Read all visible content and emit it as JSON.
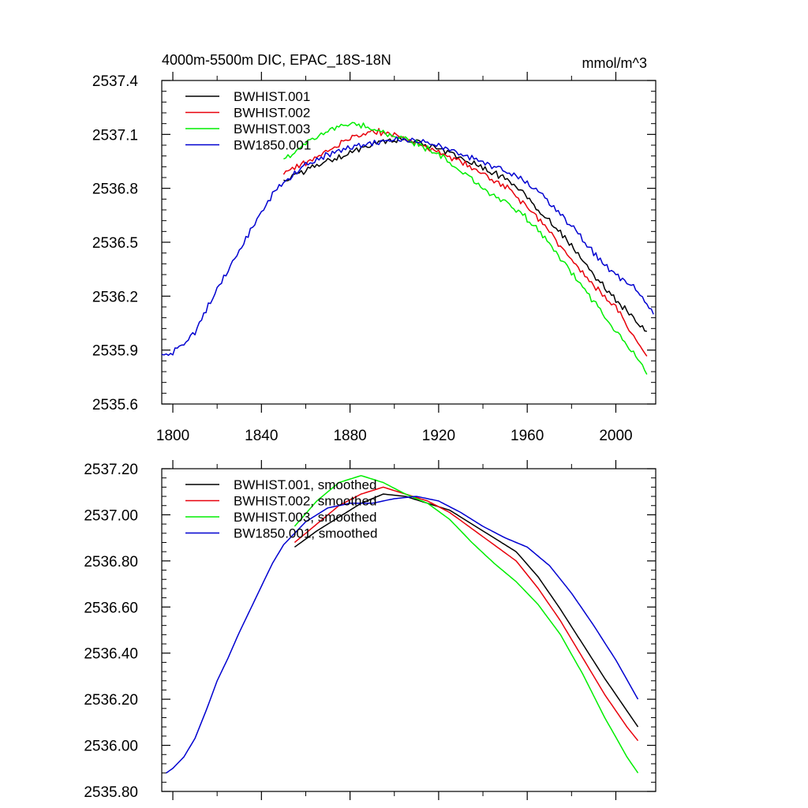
{
  "colors": {
    "BWHIST.001": "#000000",
    "BWHIST.002": "#e8000b",
    "BWHIST.003": "#00ee00",
    "BW1850.001": "#0000d0"
  },
  "chart_data": [
    {
      "type": "line",
      "title": "4000m-5500m DIC, EPAC_18S-18N",
      "units": "mmol/m^3",
      "xlim": [
        1795,
        2018
      ],
      "ylim": [
        2535.6,
        2537.4
      ],
      "xticks": [
        1800,
        1840,
        1880,
        1920,
        1960,
        2000
      ],
      "xtick_labels": [
        "1800",
        "1840",
        "1880",
        "1920",
        "1960",
        "2000"
      ],
      "yticks": [
        2535.6,
        2535.9,
        2536.2,
        2536.5,
        2536.8,
        2537.1,
        2537.4
      ],
      "ytick_labels": [
        "2535.6",
        "2535.9",
        "2536.2",
        "2536.5",
        "2536.8",
        "2537.1",
        "2537.4"
      ],
      "legend": "top-left",
      "series": [
        {
          "name": "BWHIST.001",
          "label": "BWHIST.001",
          "noise": 0.02,
          "x": [
            1850,
            1860,
            1870,
            1880,
            1890,
            1900,
            1910,
            1920,
            1930,
            1940,
            1950,
            1960,
            1970,
            1980,
            1990,
            2000,
            2014
          ],
          "y": [
            2536.84,
            2536.9,
            2536.95,
            2537.0,
            2537.05,
            2537.07,
            2537.06,
            2537.02,
            2536.97,
            2536.91,
            2536.86,
            2536.75,
            2536.62,
            2536.48,
            2536.32,
            2536.18,
            2536.0
          ]
        },
        {
          "name": "BWHIST.002",
          "label": "BWHIST.002",
          "noise": 0.02,
          "x": [
            1850,
            1860,
            1870,
            1880,
            1890,
            1900,
            1910,
            1920,
            1930,
            1940,
            1950,
            1960,
            1970,
            1980,
            1990,
            2000,
            2014
          ],
          "y": [
            2536.89,
            2536.94,
            2537.01,
            2537.08,
            2537.12,
            2537.1,
            2537.05,
            2537.0,
            2536.95,
            2536.88,
            2536.81,
            2536.7,
            2536.56,
            2536.4,
            2536.26,
            2536.14,
            2535.86
          ]
        },
        {
          "name": "BWHIST.003",
          "label": "BWHIST.003",
          "noise": 0.02,
          "x": [
            1850,
            1860,
            1870,
            1880,
            1890,
            1900,
            1910,
            1920,
            1930,
            1940,
            1950,
            1960,
            1970,
            1980,
            1990,
            2000,
            2014
          ],
          "y": [
            2536.96,
            2537.05,
            2537.12,
            2537.16,
            2537.14,
            2537.09,
            2537.05,
            2536.99,
            2536.9,
            2536.8,
            2536.73,
            2536.63,
            2536.5,
            2536.33,
            2536.17,
            2536.01,
            2535.78
          ]
        },
        {
          "name": "BW1850.001",
          "label": "BW1850.001",
          "noise": 0.02,
          "x": [
            1795,
            1800,
            1805,
            1810,
            1815,
            1820,
            1825,
            1830,
            1835,
            1840,
            1845,
            1850,
            1860,
            1870,
            1880,
            1890,
            1900,
            1910,
            1920,
            1930,
            1940,
            1950,
            1960,
            1970,
            1980,
            1990,
            2000,
            2010,
            2017
          ],
          "y": [
            2535.87,
            2535.89,
            2535.93,
            2536.0,
            2536.12,
            2536.24,
            2536.35,
            2536.45,
            2536.57,
            2536.67,
            2536.77,
            2536.83,
            2536.93,
            2536.99,
            2537.02,
            2537.05,
            2537.07,
            2537.06,
            2537.04,
            2536.99,
            2536.94,
            2536.9,
            2536.83,
            2536.72,
            2536.59,
            2536.44,
            2536.32,
            2536.23,
            2536.1
          ]
        }
      ]
    },
    {
      "type": "line",
      "title": "",
      "xlim": [
        1795,
        2018
      ],
      "ylim": [
        2535.8,
        2537.2
      ],
      "xticks": [
        1800,
        1840,
        1880,
        1920,
        1960,
        2000
      ],
      "xtick_labels": [],
      "yticks": [
        2535.8,
        2536.0,
        2536.2,
        2536.4,
        2536.6,
        2536.8,
        2537.0,
        2537.2
      ],
      "ytick_labels": [
        "2535.80",
        "2536.00",
        "2536.20",
        "2536.40",
        "2536.60",
        "2536.80",
        "2537.00",
        "2537.20"
      ],
      "legend": "top-left",
      "series": [
        {
          "name": "BWHIST.001",
          "label": "BWHIST.001, smoothed",
          "noise": 0,
          "x": [
            1855,
            1865,
            1875,
            1885,
            1895,
            1905,
            1915,
            1925,
            1935,
            1945,
            1955,
            1965,
            1975,
            1985,
            1995,
            2005,
            2010
          ],
          "y": [
            2536.86,
            2536.93,
            2536.99,
            2537.05,
            2537.09,
            2537.08,
            2537.05,
            2537.02,
            2536.96,
            2536.9,
            2536.84,
            2536.73,
            2536.59,
            2536.44,
            2536.29,
            2536.15,
            2536.08
          ]
        },
        {
          "name": "BWHIST.002",
          "label": "BWHIST.002, smoothed",
          "noise": 0,
          "x": [
            1855,
            1865,
            1875,
            1885,
            1895,
            1905,
            1915,
            1925,
            1935,
            1945,
            1955,
            1965,
            1975,
            1985,
            1995,
            2005,
            2010
          ],
          "y": [
            2536.88,
            2536.96,
            2537.04,
            2537.09,
            2537.12,
            2537.09,
            2537.06,
            2537.01,
            2536.94,
            2536.87,
            2536.8,
            2536.68,
            2536.54,
            2536.38,
            2536.22,
            2536.08,
            2536.02
          ]
        },
        {
          "name": "BWHIST.003",
          "label": "BWHIST.003, smoothed",
          "noise": 0,
          "x": [
            1855,
            1865,
            1875,
            1885,
            1895,
            1905,
            1915,
            1925,
            1935,
            1945,
            1955,
            1965,
            1975,
            1985,
            1995,
            2005,
            2010
          ],
          "y": [
            2536.95,
            2537.06,
            2537.14,
            2537.17,
            2537.14,
            2537.09,
            2537.05,
            2536.98,
            2536.88,
            2536.79,
            2536.71,
            2536.61,
            2536.48,
            2536.31,
            2536.12,
            2535.95,
            2535.88
          ]
        },
        {
          "name": "BW1850.001",
          "label": "BW1850.001, smoothed",
          "noise": 0,
          "x": [
            1797,
            1800,
            1805,
            1810,
            1815,
            1820,
            1825,
            1830,
            1835,
            1840,
            1845,
            1850,
            1860,
            1870,
            1880,
            1890,
            1900,
            1910,
            1920,
            1930,
            1940,
            1950,
            1960,
            1970,
            1980,
            1990,
            2000,
            2010
          ],
          "y": [
            2535.88,
            2535.9,
            2535.95,
            2536.03,
            2536.15,
            2536.28,
            2536.38,
            2536.49,
            2536.59,
            2536.69,
            2536.79,
            2536.87,
            2536.97,
            2537.03,
            2537.05,
            2537.05,
            2537.07,
            2537.08,
            2537.06,
            2537.01,
            2536.95,
            2536.9,
            2536.86,
            2536.78,
            2536.66,
            2536.52,
            2536.37,
            2536.2
          ]
        }
      ]
    }
  ]
}
